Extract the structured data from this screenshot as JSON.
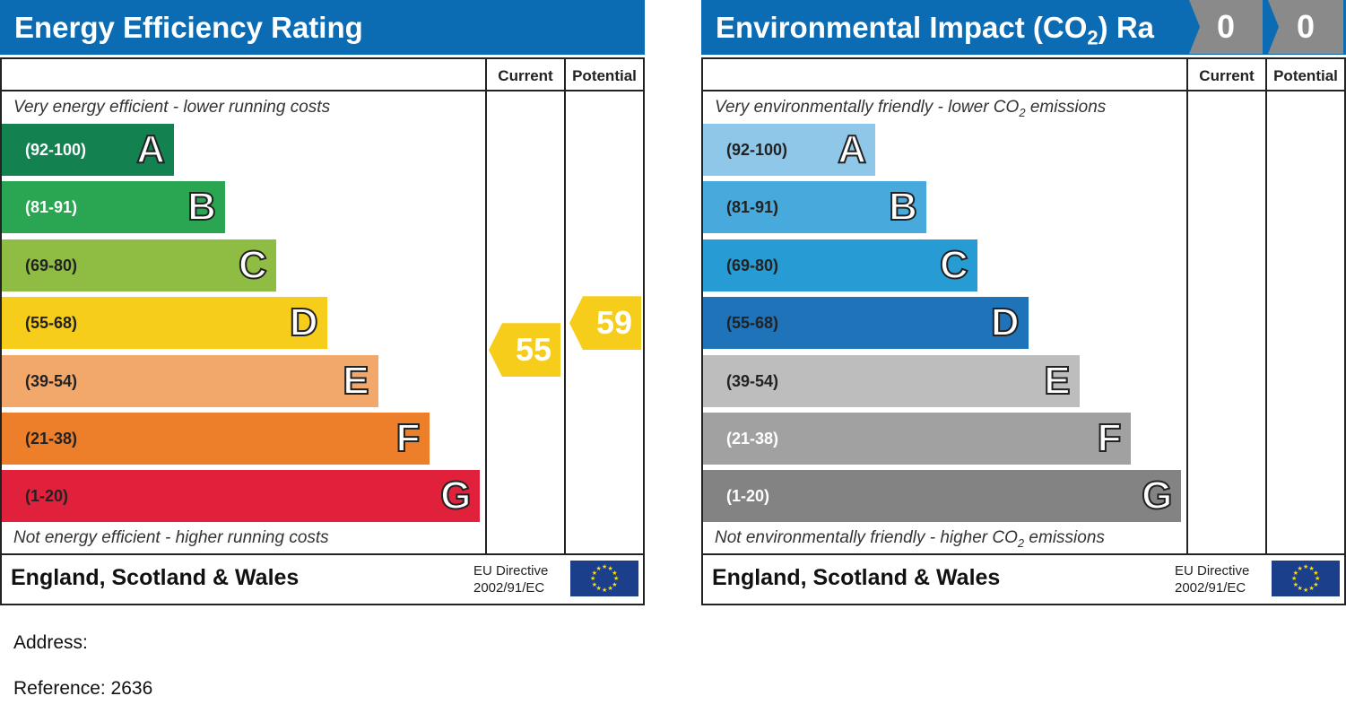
{
  "chart_data": [
    {
      "type": "bar",
      "title": "Energy Efficiency Rating",
      "columns": [
        "Current",
        "Potential"
      ],
      "top_note": "Very energy efficient - lower running costs",
      "bottom_note": "Not energy efficient - higher running costs",
      "bands": [
        {
          "range": "(92-100)",
          "letter": "A",
          "color": "#138150",
          "text_color": "#ffffff"
        },
        {
          "range": "(81-91)",
          "letter": "B",
          "color": "#2aa653",
          "text_color": "#ffffff"
        },
        {
          "range": "(69-80)",
          "letter": "C",
          "color": "#8fbd43",
          "text_color": "#222222"
        },
        {
          "range": "(55-68)",
          "letter": "D",
          "color": "#f6cd1a",
          "text_color": "#222222"
        },
        {
          "range": "(39-54)",
          "letter": "E",
          "color": "#f2a86b",
          "text_color": "#222222"
        },
        {
          "range": "(21-38)",
          "letter": "F",
          "color": "#ed7f2a",
          "text_color": "#222222"
        },
        {
          "range": "(1-20)",
          "letter": "G",
          "color": "#e1213b",
          "text_color": "#222222"
        }
      ],
      "current": {
        "value": 55,
        "band": "D",
        "color": "#f6cd1a"
      },
      "potential": {
        "value": 59,
        "band": "D",
        "color": "#f6cd1a"
      },
      "footer": "England, Scotland & Wales",
      "eu_line1": "EU Directive",
      "eu_line2": "2002/91/EC"
    },
    {
      "type": "bar",
      "title_main": "Environmental Impact (CO",
      "title_sub": "2",
      "title_end": ") Ra",
      "columns": [
        "Current",
        "Potential"
      ],
      "top_note_main": "Very environmentally friendly - lower CO",
      "top_note_sub": "2",
      "top_note_end": " emissions",
      "bottom_note_main": "Not environmentally friendly - higher CO",
      "bottom_note_sub": "2",
      "bottom_note_end": " emissions",
      "bands": [
        {
          "range": "(92-100)",
          "letter": "A",
          "color": "#8ec7e8",
          "text_color": "#222222"
        },
        {
          "range": "(81-91)",
          "letter": "B",
          "color": "#48a9dc",
          "text_color": "#222222"
        },
        {
          "range": "(69-80)",
          "letter": "C",
          "color": "#279bd4",
          "text_color": "#222222"
        },
        {
          "range": "(55-68)",
          "letter": "D",
          "color": "#1f73b9",
          "text_color": "#222222"
        },
        {
          "range": "(39-54)",
          "letter": "E",
          "color": "#bdbdbd",
          "text_color": "#222222"
        },
        {
          "range": "(21-38)",
          "letter": "F",
          "color": "#a1a1a1",
          "text_color": "#ffffff"
        },
        {
          "range": "(1-20)",
          "letter": "G",
          "color": "#838383",
          "text_color": "#ffffff"
        }
      ],
      "current": {
        "value": 0,
        "color": "#8a8a8a"
      },
      "potential": {
        "value": 0,
        "color": "#8a8a8a"
      },
      "footer": "England, Scotland & Wales",
      "eu_line1": "EU Directive",
      "eu_line2": "2002/91/EC"
    }
  ],
  "info": {
    "address_label": "Address:",
    "reference_label": "Reference: 2636"
  },
  "colors": {
    "title_bar": "#0b6bb3",
    "eu_flag": "#1c3f8c",
    "eu_star": "#ffdd00"
  }
}
